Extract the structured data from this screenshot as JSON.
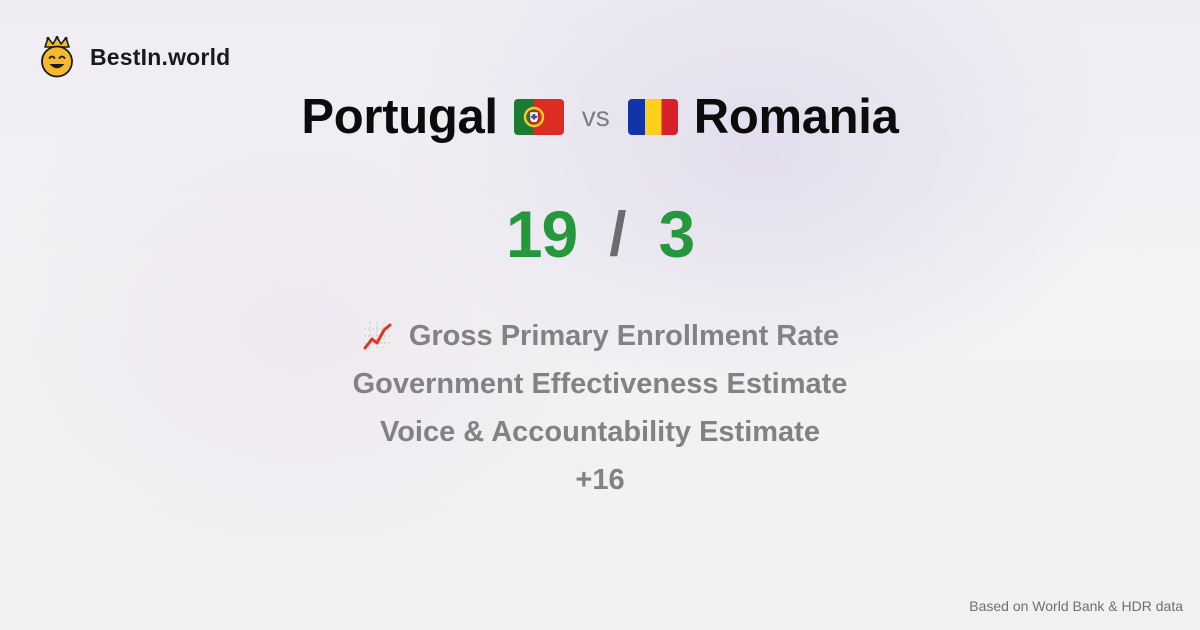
{
  "brand": {
    "name": "BestIn.world",
    "logo_icon": "crowned-smiley-icon"
  },
  "comparison": {
    "left_country": "Portugal",
    "left_flag_icon": "portugal-flag-icon",
    "vs_label": "vs",
    "right_country": "Romania",
    "right_flag_icon": "romania-flag-icon",
    "left_score": "19",
    "separator": "/",
    "right_score": "3",
    "score_color": "#25973d"
  },
  "metrics": {
    "items": [
      {
        "label": "Gross Primary Enrollment Rate",
        "icon": "trend-chart-icon"
      },
      {
        "label": "Government Effectiveness Estimate"
      },
      {
        "label": "Voice & Accountability Estimate"
      }
    ],
    "more": "+16"
  },
  "footer": {
    "source": "Based on World Bank & HDR data"
  }
}
